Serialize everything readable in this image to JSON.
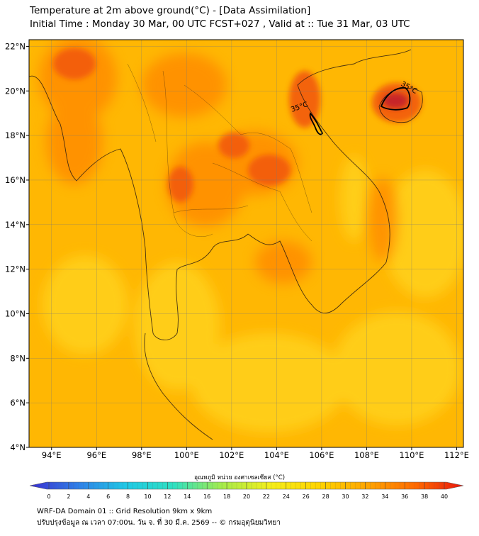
{
  "header": {
    "title": "Temperature at 2m above ground(°C) - [Data Assimilation]",
    "subtitle": "Initial Time : Monday 30 Mar, 00 UTC FCST+027 , Valid at :: Tue 31 Mar, 03 UTC"
  },
  "map": {
    "lon_range": [
      93,
      112.3
    ],
    "lat_range": [
      4,
      22.3
    ],
    "lon_ticks": [
      "94°E",
      "96°E",
      "98°E",
      "100°E",
      "102°E",
      "104°E",
      "106°E",
      "108°E",
      "110°E",
      "112°E"
    ],
    "lat_ticks": [
      "4°N",
      "6°N",
      "8°N",
      "10°N",
      "12°N",
      "14°N",
      "16°N",
      "18°N",
      "20°N",
      "22°N"
    ],
    "contour_labels": [
      "35°C",
      "35°C"
    ],
    "grid": true
  },
  "colorbar": {
    "title": "อุณหภูมิ หน่วย องศาเซลเซียส (°C)",
    "ticks": [
      "0",
      "2",
      "4",
      "6",
      "8",
      "10",
      "12",
      "14",
      "16",
      "18",
      "20",
      "22",
      "24",
      "26",
      "28",
      "30",
      "32",
      "34",
      "36",
      "38",
      "40"
    ],
    "colors": [
      "#3a2fd0",
      "#2f7fe8",
      "#1fc9e6",
      "#2fe0c0",
      "#a6ec4a",
      "#f5ee1a",
      "#ffd400",
      "#ffa500",
      "#ff6a00",
      "#e8160c"
    ]
  },
  "footer": {
    "line1": "WRF-DA Domain 01 :: Grid Resolution 9km x 9km",
    "line2": "ปรับปรุงข้อมูล ณ เวลา 07:00น. วัน จ. ที่ 30 มี.ค. 2569 -- © กรมอุตุนิยมวิทยา"
  }
}
